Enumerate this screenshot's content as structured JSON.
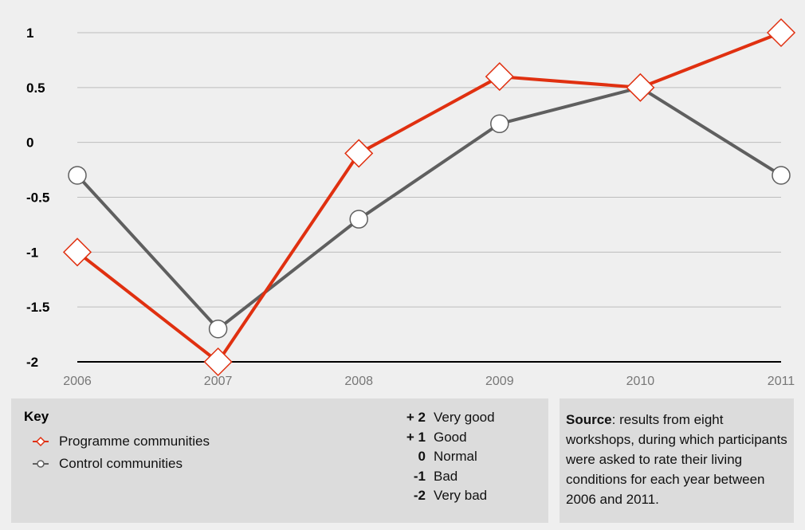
{
  "chart_data": {
    "type": "line",
    "x": [
      "2006",
      "2007",
      "2008",
      "2009",
      "2010",
      "2011"
    ],
    "series": [
      {
        "name": "Programme communities",
        "values": [
          -1,
          -2,
          -0.1,
          0.6,
          0.5,
          1
        ],
        "color": "#e03010",
        "marker": "diamond"
      },
      {
        "name": "Control communities",
        "values": [
          -0.3,
          -1.7,
          -0.7,
          0.17,
          0.5,
          -0.3
        ],
        "color": "#5f5f5f",
        "marker": "circle"
      }
    ],
    "yticks": [
      "1",
      "0.5",
      "0",
      "-0.5",
      "-1",
      "-1.5",
      "-2"
    ],
    "ylim": [
      -2,
      1
    ],
    "grid": true,
    "legend_position": "bottom-left"
  },
  "key": {
    "title": "Key",
    "items": [
      {
        "label": "Programme communities",
        "icon": "red-diamond-marker-icon"
      },
      {
        "label": "Control communities",
        "icon": "grey-circle-marker-icon"
      }
    ],
    "scale": [
      {
        "value": "+ 2",
        "label": "Very good"
      },
      {
        "value": "+ 1",
        "label": "Good"
      },
      {
        "value": "0",
        "label": "Normal"
      },
      {
        "value": "-1",
        "label": "Bad"
      },
      {
        "value": "-2",
        "label": "Very bad"
      }
    ]
  },
  "source": {
    "label": "Source",
    "text": ": results from eight workshops, during which participants were asked to rate their living conditions for each year between 2006 and 2011."
  }
}
